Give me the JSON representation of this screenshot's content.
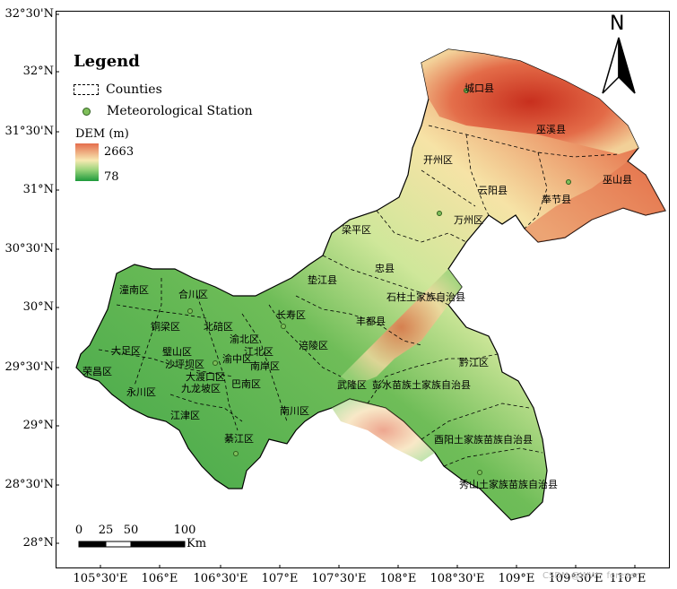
{
  "legend": {
    "title": "Legend",
    "counties_label": "Counties",
    "station_label": "Meteorological Station",
    "dem_title": "DEM (m)",
    "dem_max": "2663",
    "dem_min": "78"
  },
  "axes": {
    "lat_ticks": [
      "32°30'N",
      "32°N",
      "31°30'N",
      "31°N",
      "30°30'N",
      "30°N",
      "29°30'N",
      "29°N",
      "28°30'N",
      "28°N"
    ],
    "lon_ticks": [
      "105°30'E",
      "106°E",
      "106°30'E",
      "107°E",
      "107°30'E",
      "108°E",
      "108°30'E",
      "109°E",
      "109°30'E",
      "110°E"
    ]
  },
  "north_arrow": {
    "label": "N"
  },
  "scale_bar": {
    "labels": [
      "0",
      "25",
      "50",
      "100"
    ],
    "unit": "Km"
  },
  "counties": [
    "城口县",
    "巫溪县",
    "开州区",
    "巫山县",
    "云阳县",
    "奉节县",
    "万州区",
    "梁平区",
    "忠县",
    "垫江县",
    "石柱土家族自治县",
    "长寿区",
    "丰都县",
    "潼南区",
    "合川区",
    "铜梁区",
    "北碚区",
    "渝北区",
    "大足区",
    "璧山区",
    "沙坪坝区",
    "江北区",
    "渝中区",
    "南岸区",
    "九龙坡区",
    "大渡口区",
    "巴南区",
    "涪陵区",
    "荣昌区",
    "永川区",
    "江津区",
    "武隆区",
    "彭水苗族土家族自治县",
    "黔江区",
    "南川区",
    "酉阳土家族苗族自治县",
    "綦江区",
    "秀山土家族苗族自治县"
  ],
  "watermark": "CSDN @WW、forever",
  "colors": {
    "high": "#d7301f",
    "mid": "#f7e9b1",
    "low": "#1e9a3c"
  }
}
